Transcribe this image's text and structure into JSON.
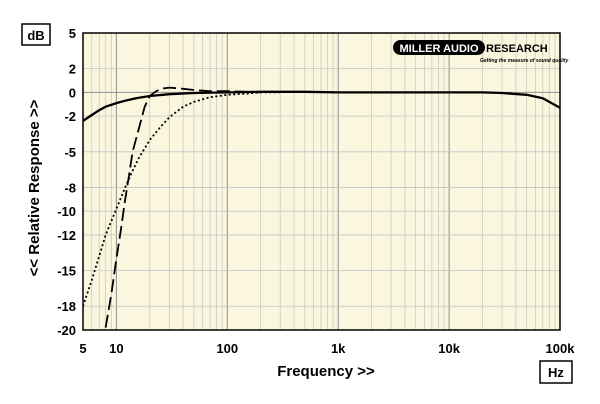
{
  "chart_data": {
    "type": "line",
    "xlabel": "Frequency >>",
    "ylabel": "<< Relative Response >>",
    "x_unit": "Hz",
    "y_unit": "dB",
    "x_scale": "log",
    "xlim": [
      5,
      100000
    ],
    "ylim": [
      -20,
      5
    ],
    "grid": true,
    "x_ticks": [
      {
        "value": 5,
        "label": "5"
      },
      {
        "value": 10,
        "label": "10"
      },
      {
        "value": 100,
        "label": "100"
      },
      {
        "value": 1000,
        "label": "1k"
      },
      {
        "value": 10000,
        "label": "10k"
      },
      {
        "value": 100000,
        "label": "100k"
      }
    ],
    "y_ticks": [
      5,
      2,
      0,
      -2,
      -5,
      -8,
      -10,
      -12,
      -15,
      -18,
      -20
    ],
    "logo": {
      "brand": "MILLER AUDIO RESEARCH",
      "tagline": "Getting the measure of sound quality"
    },
    "series": [
      {
        "style": "solid",
        "color": "#000000",
        "points": [
          [
            5,
            -2.4
          ],
          [
            6,
            -1.9
          ],
          [
            7,
            -1.5
          ],
          [
            8,
            -1.2
          ],
          [
            10,
            -0.9
          ],
          [
            12,
            -0.7
          ],
          [
            15,
            -0.5
          ],
          [
            20,
            -0.3
          ],
          [
            30,
            -0.15
          ],
          [
            50,
            -0.05
          ],
          [
            100,
            0.0
          ],
          [
            200,
            0.05
          ],
          [
            500,
            0.05
          ],
          [
            1000,
            0.0
          ],
          [
            2000,
            0.0
          ],
          [
            5000,
            0.0
          ],
          [
            10000,
            0.0
          ],
          [
            20000,
            0.0
          ],
          [
            30000,
            -0.05
          ],
          [
            50000,
            -0.2
          ],
          [
            70000,
            -0.5
          ],
          [
            100000,
            -1.3
          ]
        ]
      },
      {
        "style": "dotted",
        "color": "#000000",
        "points": [
          [
            5,
            -18.0
          ],
          [
            6,
            -15.8
          ],
          [
            7,
            -13.8
          ],
          [
            8,
            -12.0
          ],
          [
            10,
            -9.8
          ],
          [
            12,
            -8.0
          ],
          [
            14,
            -6.6
          ],
          [
            16,
            -5.5
          ],
          [
            20,
            -4.0
          ],
          [
            25,
            -2.9
          ],
          [
            30,
            -2.1
          ],
          [
            40,
            -1.2
          ],
          [
            50,
            -0.8
          ],
          [
            70,
            -0.4
          ],
          [
            100,
            -0.2
          ],
          [
            150,
            -0.1
          ],
          [
            200,
            0.0
          ],
          [
            300,
            0.0
          ]
        ]
      },
      {
        "style": "dashed",
        "color": "#000000",
        "points": [
          [
            8,
            -19.8
          ],
          [
            9,
            -17.0
          ],
          [
            10,
            -14.0
          ],
          [
            11,
            -11.5
          ],
          [
            12,
            -9.0
          ],
          [
            13,
            -7.0
          ],
          [
            14,
            -5.0
          ],
          [
            16,
            -3.0
          ],
          [
            18,
            -1.2
          ],
          [
            20,
            -0.3
          ],
          [
            22,
            0.0
          ],
          [
            25,
            0.3
          ],
          [
            30,
            0.4
          ],
          [
            40,
            0.3
          ],
          [
            50,
            0.2
          ],
          [
            70,
            0.1
          ],
          [
            100,
            0.1
          ],
          [
            150,
            0.05
          ],
          [
            200,
            0.0
          ]
        ]
      }
    ]
  }
}
